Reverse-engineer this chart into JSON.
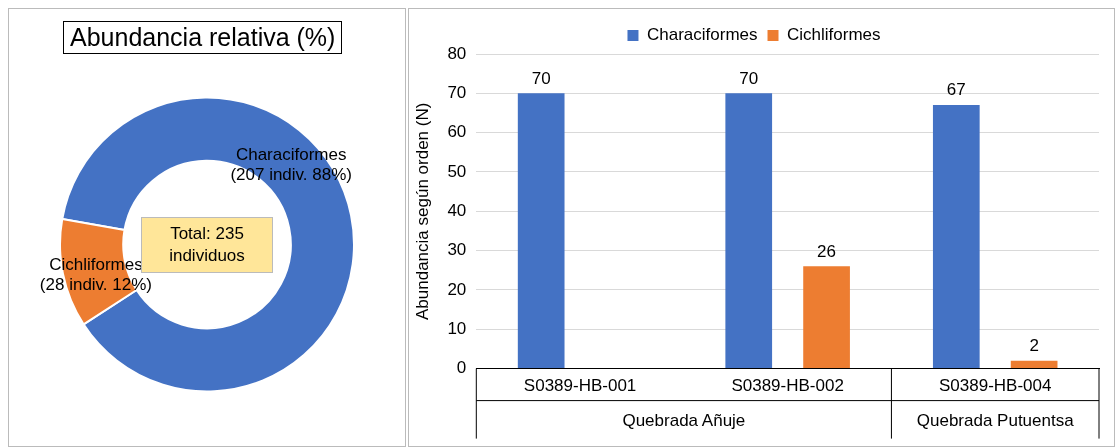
{
  "chart_data": [
    {
      "type": "donut",
      "title": "Abundancia relativa (%)",
      "categories": [
        "Characiformes",
        "Cichliformes"
      ],
      "values": [
        207,
        28
      ],
      "colors": [
        "#4472c4",
        "#ed7d31"
      ],
      "value_labels": [
        "(207 indiv. 88%)",
        "(28 indiv. 12%)"
      ],
      "annotations": [
        "Total: 235 individuos"
      ],
      "legend": false
    },
    {
      "type": "bar",
      "categories": [
        "S0389-HB-001",
        "S0389-HB-002",
        "S0389-HB-004"
      ],
      "ylabel": "Abundancia según orden (N)",
      "series": [
        {
          "name": "Characiformes",
          "color": "#4472c4",
          "values": [
            70,
            70,
            67
          ]
        },
        {
          "name": "Cichliformes",
          "color": "#ed7d31",
          "values": [
            null,
            26,
            2
          ]
        }
      ],
      "ylim": [
        0,
        80
      ],
      "yticks": [
        0,
        10,
        20,
        30,
        40,
        50,
        60,
        70,
        80
      ],
      "grid": "y",
      "legend": "top",
      "data_labels": true,
      "annotations": [
        "Quebrada Añuje",
        "Quebrada Putuentsa"
      ]
    }
  ]
}
